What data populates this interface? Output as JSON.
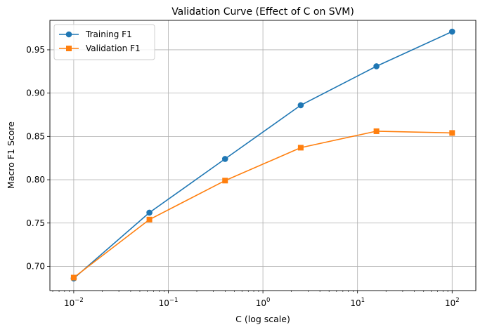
{
  "chart_data": {
    "type": "line",
    "title": "Validation Curve (Effect of C on SVM)",
    "xlabel": "C (log scale)",
    "ylabel": "Macro F1 Score",
    "x_scale": "log",
    "x": [
      0.01,
      0.0631,
      0.398,
      2.51,
      15.85,
      100
    ],
    "xlim": [
      0.0056,
      178
    ],
    "ylim": [
      0.672,
      0.984
    ],
    "x_ticks": [
      {
        "value": 0.01,
        "base": "10",
        "exp": "−2"
      },
      {
        "value": 0.1,
        "base": "10",
        "exp": "−1"
      },
      {
        "value": 1,
        "base": "10",
        "exp": "0"
      },
      {
        "value": 10,
        "base": "10",
        "exp": "1"
      },
      {
        "value": 100,
        "base": "10",
        "exp": "2"
      }
    ],
    "y_ticks": [
      {
        "value": 0.7,
        "label": "0.70"
      },
      {
        "value": 0.75,
        "label": "0.75"
      },
      {
        "value": 0.8,
        "label": "0.80"
      },
      {
        "value": 0.85,
        "label": "0.85"
      },
      {
        "value": 0.9,
        "label": "0.90"
      },
      {
        "value": 0.95,
        "label": "0.95"
      }
    ],
    "grid": true,
    "legend_position": "upper-left",
    "series": [
      {
        "name": "Training F1",
        "color": "#1f77b4",
        "marker": "circle",
        "values": [
          0.686,
          0.762,
          0.824,
          0.886,
          0.931,
          0.971
        ]
      },
      {
        "name": "Validation F1",
        "color": "#ff7f0e",
        "marker": "square",
        "values": [
          0.687,
          0.754,
          0.799,
          0.837,
          0.856,
          0.854
        ]
      }
    ]
  }
}
